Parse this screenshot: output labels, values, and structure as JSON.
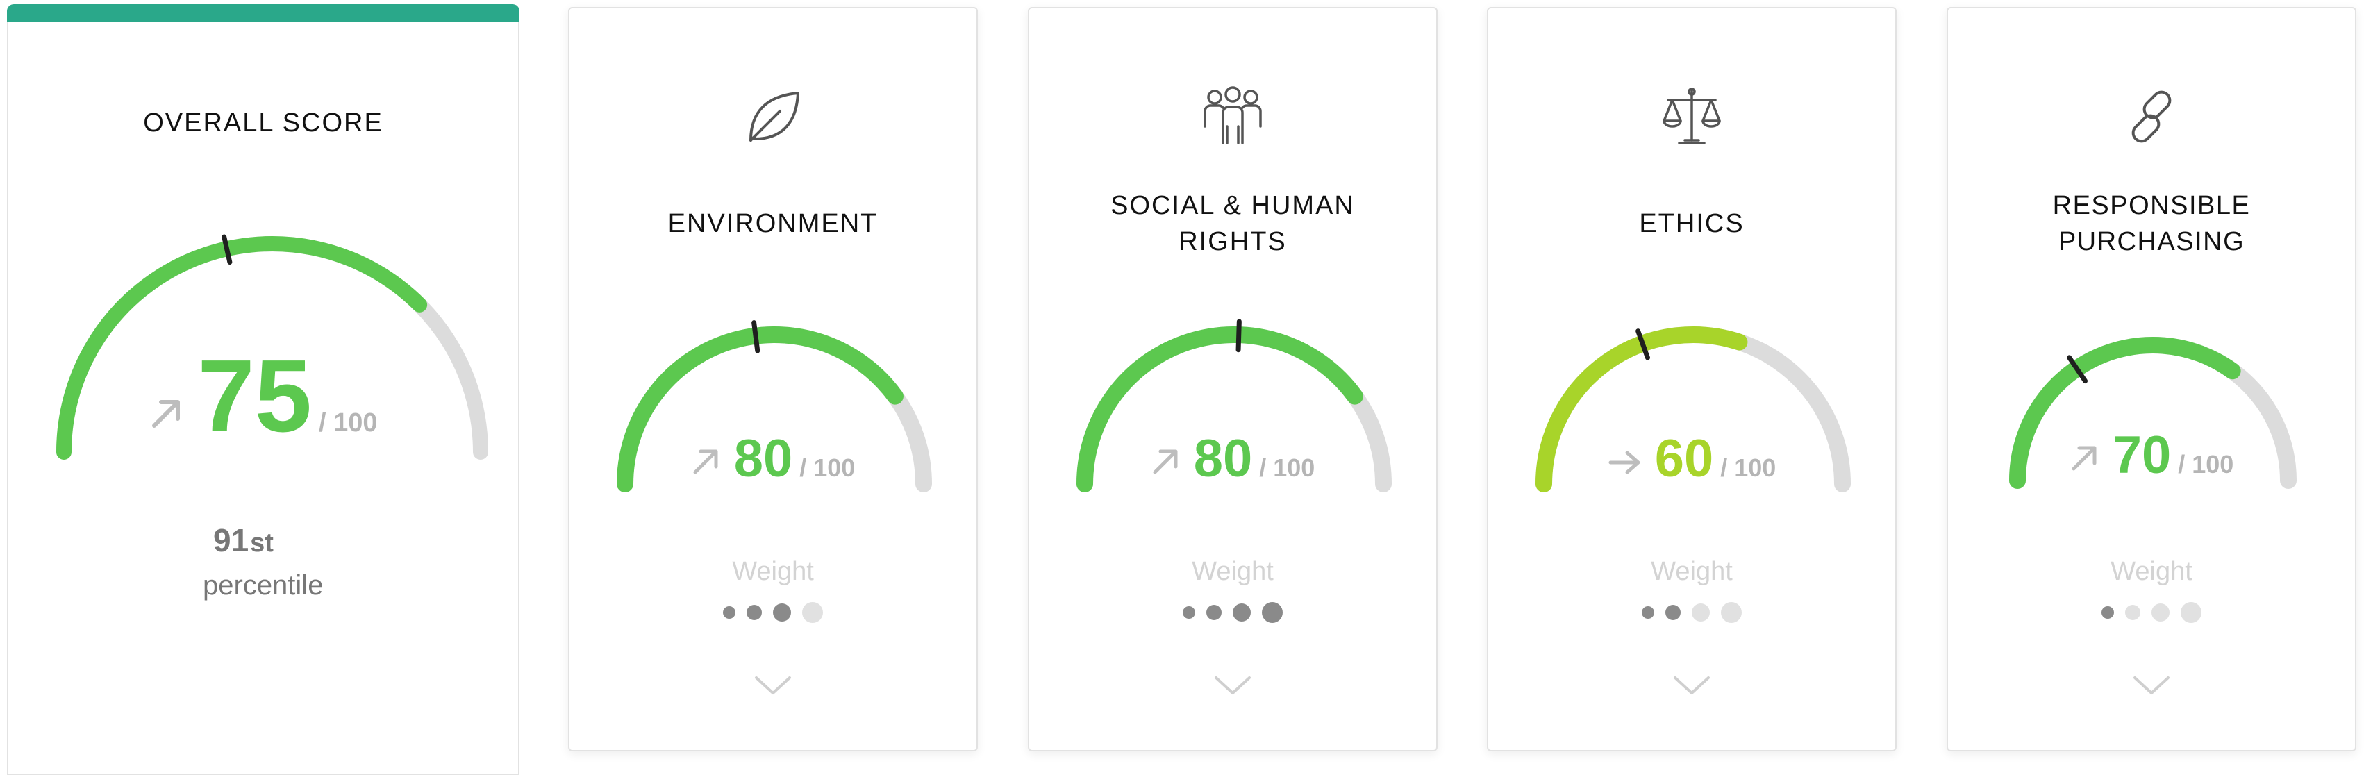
{
  "colors": {
    "accent_bar": "#2aa88a",
    "gauge_green": "#5cc84f",
    "gauge_lime": "#a8d42a",
    "gauge_track": "#dcdcdc",
    "marker": "#1f1f1f",
    "dot_active": "#8a8a8a",
    "dot_inactive": "#e1e1e1"
  },
  "overall": {
    "title": "OVERALL SCORE",
    "score": "75",
    "out_of": "/ 100",
    "score_fraction": 0.75,
    "marker_fraction": 0.43,
    "trend_icon": "arrow-up-right-icon",
    "percentile_number": "91",
    "percentile_suffix": "st",
    "percentile_label": "percentile"
  },
  "pillars": [
    {
      "title": "ENVIRONMENT",
      "icon": "leaf-icon",
      "score": "80",
      "out_of": "/ 100",
      "score_fraction": 0.8,
      "marker_fraction": 0.46,
      "trend_icon": "arrow-up-right-icon",
      "color_key": "green",
      "weight_label": "Weight",
      "weight_level": 3,
      "weight_max": 4,
      "expand_icon": "chevron-down-icon"
    },
    {
      "title": "SOCIAL & HUMAN RIGHTS",
      "icon": "people-group-icon",
      "score": "80",
      "out_of": "/ 100",
      "score_fraction": 0.8,
      "marker_fraction": 0.51,
      "trend_icon": "arrow-up-right-icon",
      "color_key": "green",
      "weight_label": "Weight",
      "weight_level": 4,
      "weight_max": 4,
      "expand_icon": "chevron-down-icon"
    },
    {
      "title": "ETHICS",
      "icon": "scales-of-justice-icon",
      "score": "60",
      "out_of": "/ 100",
      "score_fraction": 0.6,
      "marker_fraction": 0.39,
      "trend_icon": "arrow-right-icon",
      "color_key": "lime",
      "weight_label": "Weight",
      "weight_level": 2,
      "weight_max": 4,
      "expand_icon": "chevron-down-icon"
    },
    {
      "title": "RESPONSIBLE PURCHASING",
      "icon": "link-chain-icon",
      "score": "70",
      "out_of": "/ 100",
      "score_fraction": 0.7,
      "marker_fraction": 0.31,
      "trend_icon": "arrow-up-right-icon",
      "color_key": "green",
      "weight_label": "Weight",
      "weight_level": 1,
      "weight_max": 4,
      "expand_icon": "chevron-down-icon"
    }
  ]
}
